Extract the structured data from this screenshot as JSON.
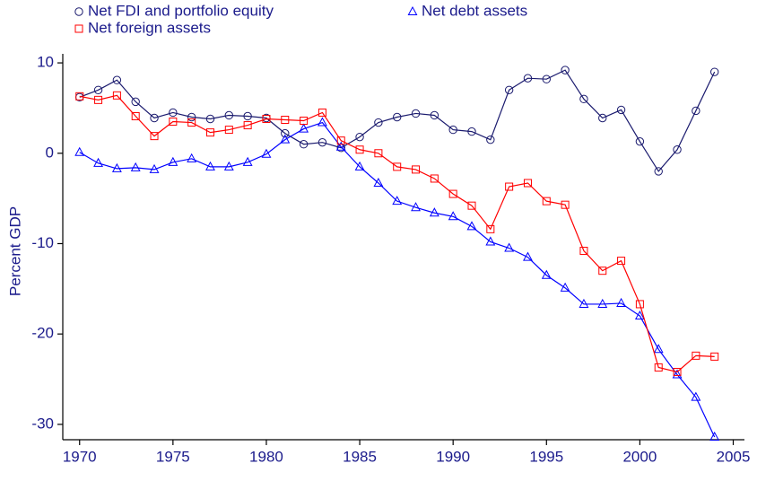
{
  "chart_data": {
    "type": "line",
    "y_label": "Percent GDP",
    "x": [
      1970,
      1971,
      1972,
      1973,
      1974,
      1975,
      1976,
      1977,
      1978,
      1979,
      1980,
      1981,
      1982,
      1983,
      1984,
      1985,
      1986,
      1987,
      1988,
      1989,
      1990,
      1991,
      1992,
      1993,
      1994,
      1995,
      1996,
      1997,
      1998,
      1999,
      2000,
      2001,
      2002,
      2003,
      2004
    ],
    "series": [
      {
        "name": "Net FDI and portfolio equity",
        "color": "#1a1a6e",
        "marker": "circle",
        "values": [
          6.2,
          7.0,
          8.1,
          5.7,
          3.9,
          4.5,
          4.0,
          3.8,
          4.2,
          4.1,
          3.9,
          2.2,
          1.0,
          1.2,
          0.6,
          1.8,
          3.4,
          4.0,
          4.4,
          4.2,
          2.6,
          2.4,
          1.5,
          7.0,
          8.3,
          8.2,
          9.2,
          6.0,
          3.9,
          4.8,
          1.3,
          -2.0,
          0.4,
          4.7,
          9.0
        ]
      },
      {
        "name": "Net debt assets",
        "color": "#0000ff",
        "marker": "triangle",
        "values": [
          0.1,
          -1.1,
          -1.7,
          -1.6,
          -1.8,
          -1.0,
          -0.6,
          -1.5,
          -1.5,
          -1.0,
          -0.1,
          1.5,
          2.7,
          3.4,
          0.7,
          -1.5,
          -3.3,
          -5.3,
          -6.0,
          -6.6,
          -7.0,
          -8.1,
          -9.8,
          -10.5,
          -11.5,
          -13.5,
          -14.9,
          -16.7,
          -16.7,
          -16.6,
          -18.0,
          -21.7,
          -24.5,
          -27.0,
          -31.4
        ]
      },
      {
        "name": "Net foreign assets",
        "color": "#ff0000",
        "marker": "square",
        "values": [
          6.3,
          5.9,
          6.4,
          4.1,
          1.9,
          3.5,
          3.4,
          2.3,
          2.6,
          3.1,
          3.8,
          3.7,
          3.6,
          4.5,
          1.4,
          0.4,
          0.0,
          -1.5,
          -1.8,
          -2.8,
          -4.5,
          -5.8,
          -8.4,
          -3.7,
          -3.3,
          -5.3,
          -5.7,
          -10.8,
          -13.0,
          -11.9,
          -16.7,
          -23.7,
          -24.2,
          -22.4,
          -22.5
        ]
      }
    ],
    "xlim": [
      1969.1,
      2005.6
    ],
    "xticks": [
      1970,
      1975,
      1980,
      1985,
      1990,
      1995,
      2000,
      2005
    ],
    "ylim": [
      -31.7,
      11
    ],
    "yticks": [
      -30,
      -20,
      -10,
      0,
      10
    ],
    "grid": false
  }
}
